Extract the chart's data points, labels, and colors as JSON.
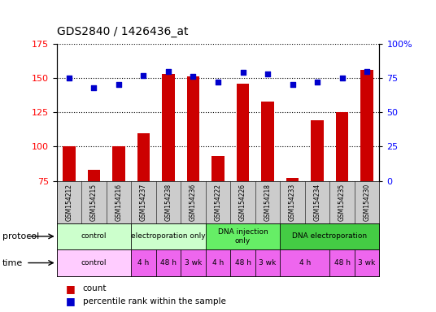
{
  "title": "GDS2840 / 1426436_at",
  "samples": [
    "GSM154212",
    "GSM154215",
    "GSM154216",
    "GSM154237",
    "GSM154238",
    "GSM154236",
    "GSM154222",
    "GSM154226",
    "GSM154218",
    "GSM154233",
    "GSM154234",
    "GSM154235",
    "GSM154230"
  ],
  "counts": [
    100,
    83,
    100,
    110,
    153,
    151,
    93,
    146,
    133,
    77,
    119,
    125,
    156
  ],
  "percentile_ranks": [
    75,
    68,
    70,
    77,
    80,
    76,
    72,
    79,
    78,
    70,
    72,
    75,
    80
  ],
  "ylim_left": [
    75,
    175
  ],
  "ylim_right": [
    0,
    100
  ],
  "yticks_left": [
    75,
    100,
    125,
    150,
    175
  ],
  "yticks_right": [
    0,
    25,
    50,
    75,
    100
  ],
  "bar_color": "#cc0000",
  "dot_color": "#0000cc",
  "prot_data": [
    [
      0,
      3,
      "control",
      "#ccffcc"
    ],
    [
      3,
      6,
      "electroporation only",
      "#ccffcc"
    ],
    [
      6,
      9,
      "DNA injection\nonly",
      "#66ee66"
    ],
    [
      9,
      13,
      "DNA electroporation",
      "#44cc44"
    ]
  ],
  "time_data": [
    [
      0,
      3,
      "control",
      "#ffccff"
    ],
    [
      3,
      4,
      "4 h",
      "#ee66ee"
    ],
    [
      4,
      5,
      "48 h",
      "#ee66ee"
    ],
    [
      5,
      6,
      "3 wk",
      "#ee66ee"
    ],
    [
      6,
      7,
      "4 h",
      "#ee66ee"
    ],
    [
      7,
      8,
      "48 h",
      "#ee66ee"
    ],
    [
      8,
      9,
      "3 wk",
      "#ee66ee"
    ],
    [
      9,
      11,
      "4 h",
      "#ee66ee"
    ],
    [
      11,
      12,
      "48 h",
      "#ee66ee"
    ],
    [
      12,
      13,
      "3 wk",
      "#ee66ee"
    ]
  ],
  "legend_count_color": "#cc0000",
  "legend_pct_color": "#0000cc"
}
